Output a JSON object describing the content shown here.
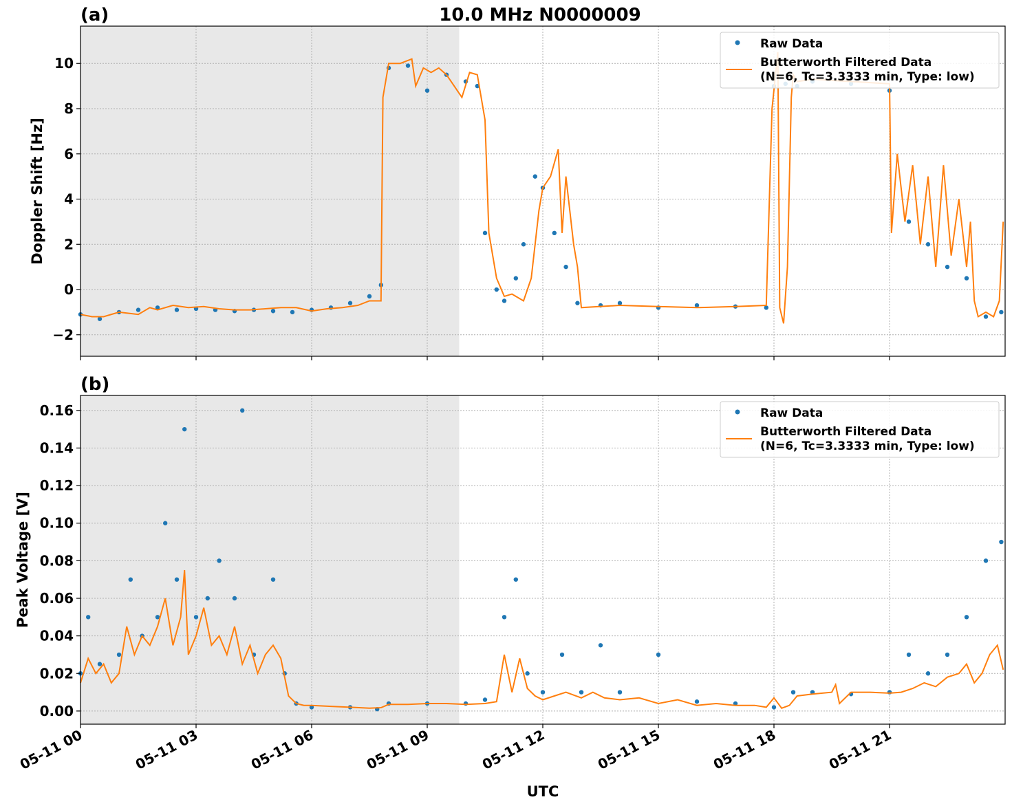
{
  "figure": {
    "title": "10.0 MHz N0000009",
    "xlabel": "UTC",
    "colors": {
      "raw": "#1f77b4",
      "filtered": "#ff7f0e",
      "shade": "#e8e8e8",
      "grid": "#b0b0b0"
    }
  },
  "chart_data": [
    {
      "type": "scatter",
      "panel_label": "(a)",
      "title": "10.0 MHz N0000009",
      "xlabel": "",
      "ylabel": "Doppler Shift [Hz]",
      "x_unit": "hours UTC on 05-11",
      "xlim": [
        0,
        24
      ],
      "ylim": [
        -2.95,
        11.65
      ],
      "yticks": [
        -2,
        0,
        2,
        4,
        6,
        8,
        10
      ],
      "ytick_labels": [
        "−2",
        "0",
        "2",
        "4",
        "6",
        "8",
        "10"
      ],
      "grid": true,
      "legend_position": "upper-right",
      "shaded_interval": [
        0,
        9.83
      ],
      "series": [
        {
          "name": "Raw Data",
          "style": "points",
          "x": [
            0,
            0.5,
            1,
            1.5,
            2,
            2.5,
            3,
            3.5,
            4,
            4.5,
            5,
            5.5,
            6,
            6.5,
            7,
            7.5,
            7.8,
            8.0,
            8.5,
            9.0,
            9.5,
            10.0,
            10.3,
            10.5,
            10.8,
            11.0,
            11.3,
            11.5,
            11.8,
            12.0,
            12.3,
            12.6,
            12.9,
            13.5,
            14,
            15,
            16,
            17,
            17.8,
            18.0,
            18.3,
            18.6,
            19,
            20,
            21,
            21.5,
            22,
            22.5,
            23,
            23.5,
            23.9
          ],
          "y": [
            -1.1,
            -1.3,
            -1.0,
            -0.9,
            -0.8,
            -0.9,
            -0.85,
            -0.9,
            -0.95,
            -0.9,
            -0.95,
            -1.0,
            -0.9,
            -0.8,
            -0.6,
            -0.3,
            0.2,
            9.8,
            9.9,
            8.8,
            9.5,
            9.2,
            9.0,
            2.5,
            0.0,
            -0.5,
            0.5,
            2.0,
            5.0,
            4.5,
            2.5,
            1.0,
            -0.6,
            -0.7,
            -0.6,
            -0.8,
            -0.7,
            -0.75,
            -0.8,
            9.0,
            9.1,
            9.0,
            9.2,
            9.1,
            8.8,
            3.0,
            2.0,
            1.0,
            0.5,
            -1.2,
            -1.0
          ]
        },
        {
          "name": "Butterworth Filtered Data\n(N=6, Tc=3.3333 min, Type: low)",
          "label_lines": [
            "Butterworth Filtered Data",
            "(N=6, Tc=3.3333 min, Type: low)"
          ],
          "style": "line",
          "x": [
            0,
            0.3,
            0.6,
            1.0,
            1.5,
            1.8,
            2.0,
            2.4,
            2.8,
            3.2,
            3.6,
            4.0,
            4.4,
            4.8,
            5.2,
            5.6,
            6.0,
            6.4,
            6.8,
            7.2,
            7.5,
            7.8,
            7.85,
            8.0,
            8.3,
            8.6,
            8.7,
            8.9,
            9.1,
            9.3,
            9.5,
            9.7,
            9.9,
            10.1,
            10.3,
            10.5,
            10.6,
            10.8,
            11.0,
            11.2,
            11.5,
            11.7,
            11.9,
            12.0,
            12.2,
            12.4,
            12.5,
            12.6,
            12.7,
            12.8,
            12.9,
            13.0,
            14.0,
            15.0,
            16.0,
            17.0,
            17.8,
            17.95,
            18.1,
            18.15,
            18.25,
            18.35,
            18.45,
            18.5,
            18.6,
            19,
            20,
            21,
            21.05,
            21.2,
            21.4,
            21.6,
            21.8,
            22.0,
            22.2,
            22.4,
            22.6,
            22.8,
            23.0,
            23.1,
            23.2,
            23.3,
            23.5,
            23.7,
            23.85,
            23.95
          ],
          "y": [
            -1.1,
            -1.2,
            -1.2,
            -1.0,
            -1.1,
            -0.8,
            -0.9,
            -0.7,
            -0.8,
            -0.75,
            -0.85,
            -0.9,
            -0.9,
            -0.85,
            -0.8,
            -0.8,
            -0.95,
            -0.85,
            -0.8,
            -0.7,
            -0.5,
            -0.5,
            8.5,
            10.0,
            10.0,
            10.2,
            9.0,
            9.8,
            9.6,
            9.8,
            9.5,
            9.0,
            8.5,
            9.6,
            9.5,
            7.5,
            2.5,
            0.5,
            -0.3,
            -0.2,
            -0.5,
            0.5,
            3.5,
            4.5,
            5.0,
            6.2,
            2.5,
            5.0,
            3.5,
            2.0,
            1.0,
            -0.8,
            -0.7,
            -0.75,
            -0.8,
            -0.75,
            -0.7,
            8.0,
            10.5,
            -0.8,
            -1.5,
            1.0,
            8.5,
            9.5,
            9.2,
            9.3,
            9.2,
            9.1,
            2.5,
            6.0,
            3.0,
            5.5,
            2.0,
            5.0,
            1.0,
            5.5,
            1.5,
            4.0,
            1.0,
            3.0,
            -0.5,
            -1.2,
            -1.0,
            -1.2,
            -0.5,
            3.0
          ]
        }
      ]
    },
    {
      "type": "scatter",
      "panel_label": "(b)",
      "title": "",
      "xlabel": "UTC",
      "ylabel": "Peak Voltage [V]",
      "x_unit": "hours UTC on 05-11",
      "xlim": [
        0,
        24
      ],
      "ylim": [
        -0.007,
        0.168
      ],
      "yticks": [
        0.0,
        0.02,
        0.04,
        0.06,
        0.08,
        0.1,
        0.12,
        0.14,
        0.16
      ],
      "ytick_labels": [
        "0.00",
        "0.02",
        "0.04",
        "0.06",
        "0.08",
        "0.10",
        "0.12",
        "0.14",
        "0.16"
      ],
      "xticks": [
        0,
        3,
        6,
        9,
        12,
        15,
        18,
        21
      ],
      "xtick_labels": [
        "05-11 00",
        "05-11 03",
        "05-11 06",
        "05-11 09",
        "05-11 12",
        "05-11 15",
        "05-11 18",
        "05-11 21"
      ],
      "grid": true,
      "legend_position": "upper-right",
      "shaded_interval": [
        0,
        9.83
      ],
      "series": [
        {
          "name": "Raw Data",
          "style": "points",
          "x": [
            0,
            0.2,
            0.5,
            1.0,
            1.3,
            1.6,
            2.0,
            2.2,
            2.5,
            2.7,
            3.0,
            3.3,
            3.6,
            4.0,
            4.2,
            4.5,
            5.0,
            5.3,
            5.6,
            6.0,
            7.0,
            7.7,
            8.0,
            9.0,
            10.0,
            10.5,
            11.0,
            11.3,
            11.6,
            12.0,
            12.5,
            13.0,
            13.5,
            14.0,
            15.0,
            16.0,
            17.0,
            18.0,
            18.5,
            19.0,
            20.0,
            21.0,
            21.5,
            22.0,
            22.5,
            23.0,
            23.5,
            23.9
          ],
          "y": [
            0.02,
            0.05,
            0.025,
            0.03,
            0.07,
            0.04,
            0.05,
            0.1,
            0.07,
            0.15,
            0.05,
            0.06,
            0.08,
            0.06,
            0.16,
            0.03,
            0.07,
            0.02,
            0.004,
            0.002,
            0.002,
            0.001,
            0.004,
            0.004,
            0.004,
            0.006,
            0.05,
            0.07,
            0.02,
            0.01,
            0.03,
            0.01,
            0.035,
            0.01,
            0.03,
            0.005,
            0.004,
            0.002,
            0.01,
            0.01,
            0.009,
            0.01,
            0.03,
            0.02,
            0.03,
            0.05,
            0.08,
            0.09
          ]
        },
        {
          "name": "Butterworth Filtered Data\n(N=6, Tc=3.3333 min, Type: low)",
          "label_lines": [
            "Butterworth Filtered Data",
            "(N=6, Tc=3.3333 min, Type: low)"
          ],
          "style": "line",
          "x": [
            0,
            0.2,
            0.4,
            0.6,
            0.8,
            1.0,
            1.2,
            1.4,
            1.6,
            1.8,
            2.0,
            2.2,
            2.4,
            2.6,
            2.7,
            2.8,
            3.0,
            3.2,
            3.4,
            3.6,
            3.8,
            4.0,
            4.2,
            4.4,
            4.6,
            4.8,
            5.0,
            5.2,
            5.4,
            5.6,
            5.8,
            6.0,
            6.5,
            7.0,
            7.5,
            7.8,
            8.0,
            8.5,
            9.0,
            9.5,
            10.0,
            10.5,
            10.8,
            11.0,
            11.2,
            11.4,
            11.6,
            11.8,
            12.0,
            12.3,
            12.6,
            13.0,
            13.3,
            13.6,
            14.0,
            14.5,
            15.0,
            15.5,
            16.0,
            16.5,
            17.0,
            17.5,
            17.8,
            18.0,
            18.2,
            18.4,
            18.6,
            19.0,
            19.5,
            19.6,
            19.7,
            20.0,
            20.5,
            21.0,
            21.3,
            21.6,
            21.9,
            22.2,
            22.5,
            22.8,
            23.0,
            23.2,
            23.4,
            23.6,
            23.8,
            23.95
          ],
          "y": [
            0.015,
            0.028,
            0.02,
            0.025,
            0.015,
            0.02,
            0.045,
            0.03,
            0.04,
            0.035,
            0.045,
            0.06,
            0.035,
            0.05,
            0.075,
            0.03,
            0.04,
            0.055,
            0.035,
            0.04,
            0.03,
            0.045,
            0.025,
            0.035,
            0.02,
            0.03,
            0.035,
            0.028,
            0.008,
            0.004,
            0.003,
            0.003,
            0.0025,
            0.002,
            0.0015,
            0.0018,
            0.0035,
            0.0035,
            0.004,
            0.004,
            0.0035,
            0.004,
            0.005,
            0.03,
            0.01,
            0.028,
            0.012,
            0.008,
            0.006,
            0.008,
            0.01,
            0.007,
            0.01,
            0.007,
            0.006,
            0.007,
            0.004,
            0.006,
            0.003,
            0.004,
            0.003,
            0.003,
            0.002,
            0.007,
            0.0015,
            0.003,
            0.008,
            0.009,
            0.01,
            0.014,
            0.004,
            0.01,
            0.01,
            0.0095,
            0.01,
            0.012,
            0.015,
            0.013,
            0.018,
            0.02,
            0.025,
            0.015,
            0.02,
            0.03,
            0.035,
            0.022
          ]
        }
      ]
    }
  ]
}
